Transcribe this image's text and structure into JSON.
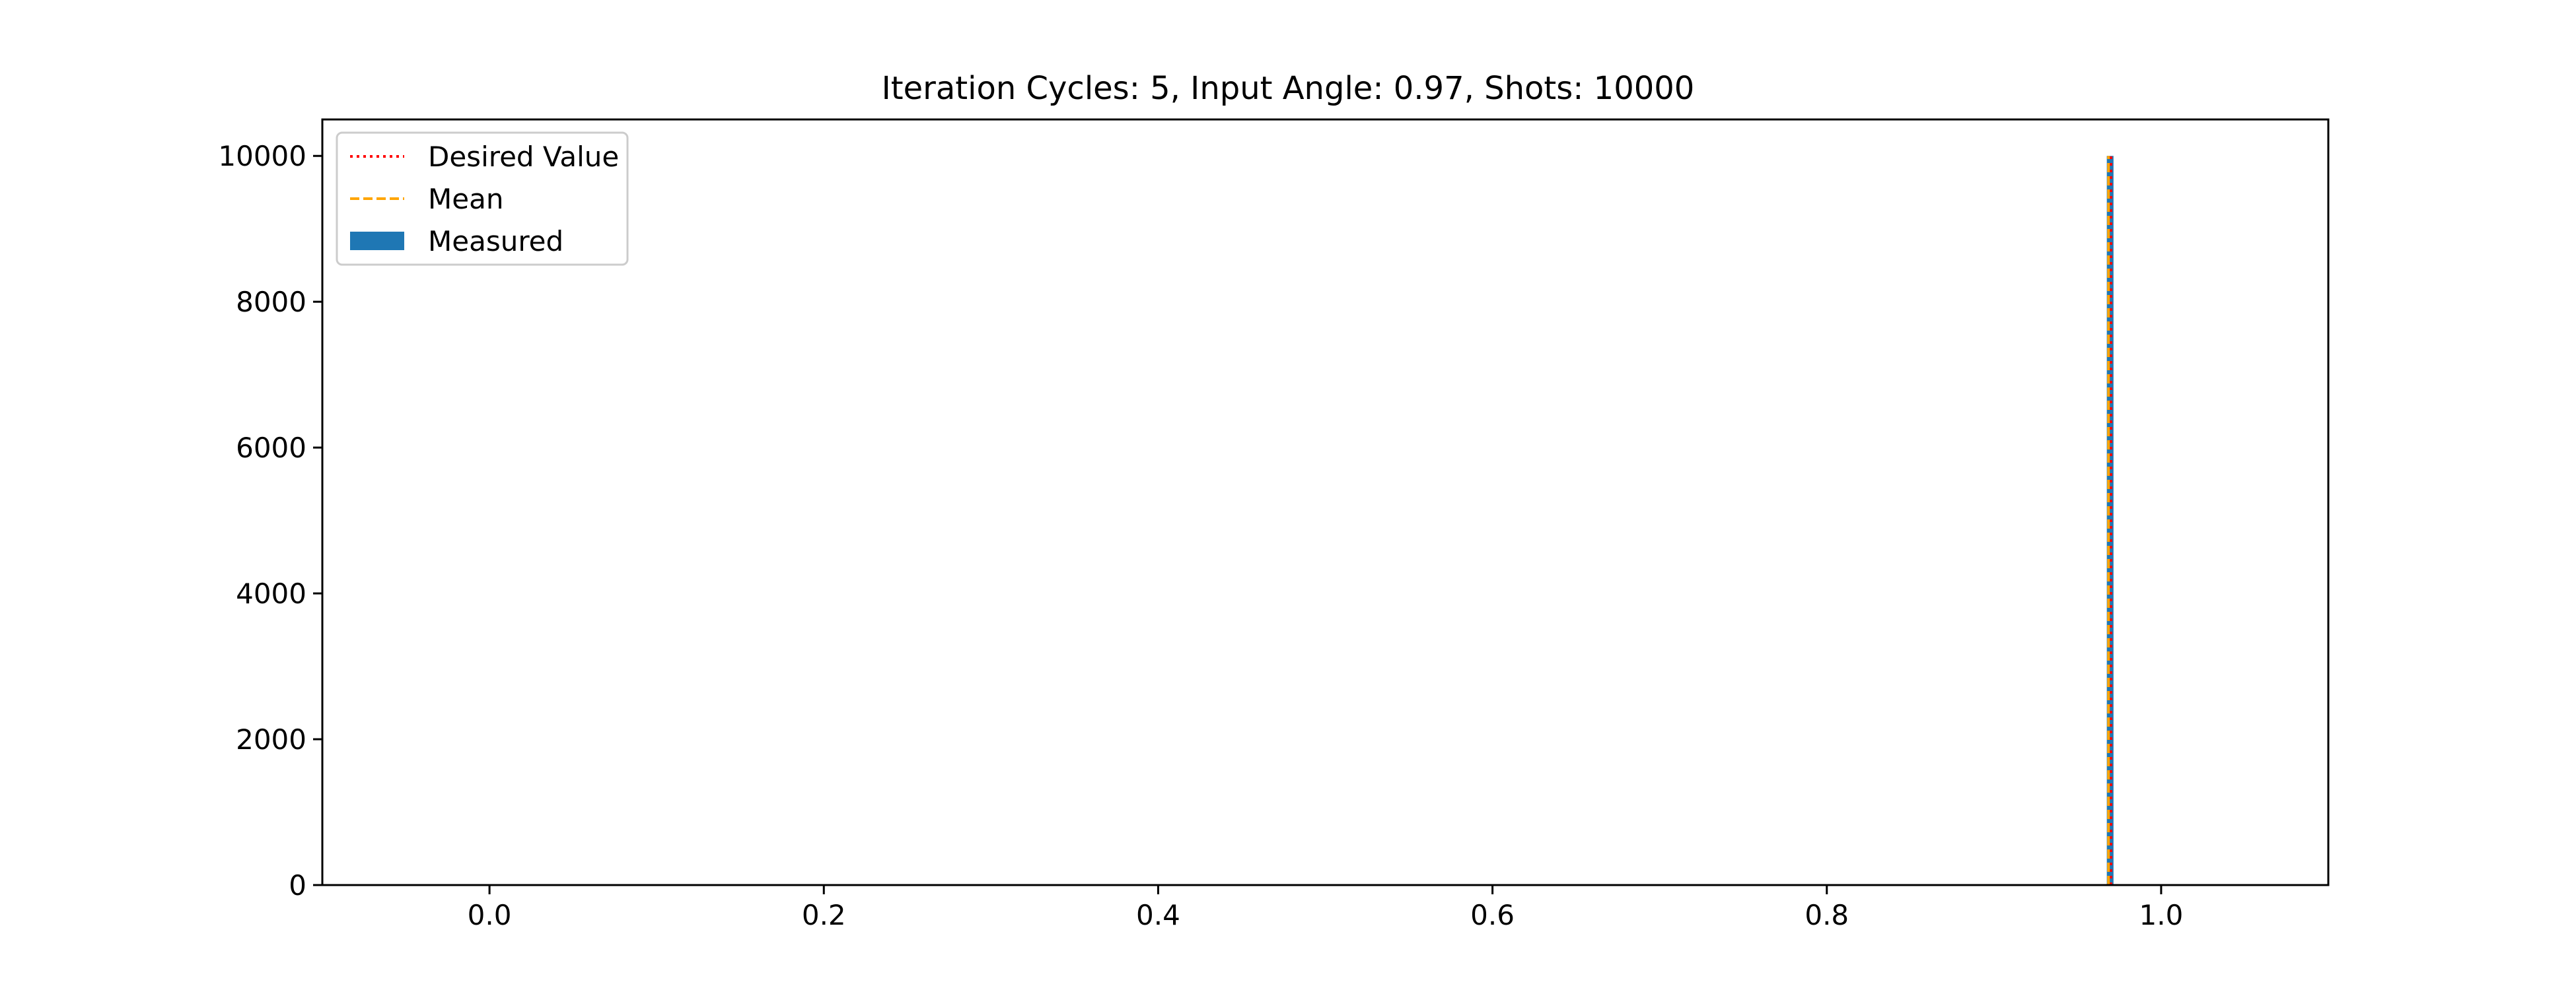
{
  "chart_data": {
    "type": "bar",
    "title": "Iteration Cycles: 5, Input Angle: 0.97, Shots: 10000",
    "xlabel": "",
    "ylabel": "",
    "xlim": [
      -0.1,
      1.1
    ],
    "ylim": [
      0,
      10500
    ],
    "x_ticks": [
      0.0,
      0.2,
      0.4,
      0.6,
      0.8,
      1.0
    ],
    "x_tick_labels": [
      "0.0",
      "0.2",
      "0.4",
      "0.6",
      "0.8",
      "1.0"
    ],
    "y_ticks": [
      0,
      2000,
      4000,
      6000,
      8000,
      10000
    ],
    "y_tick_labels": [
      "0",
      "2000",
      "4000",
      "6000",
      "8000",
      "10000"
    ],
    "grid": false,
    "legend_position": "top-left",
    "series": [
      {
        "name": "Measured",
        "kind": "histogram",
        "color": "#1f77b4",
        "bins": [
          {
            "x0": 0.9675,
            "x1": 0.9715,
            "count": 10000
          }
        ]
      },
      {
        "name": "Desired Value",
        "kind": "vline",
        "color": "#ff0000",
        "linestyle": "dotted",
        "x": 0.97,
        "ymax": 10000
      },
      {
        "name": "Mean",
        "kind": "vline",
        "color": "#ffa500",
        "linestyle": "dashed",
        "x": 0.9685,
        "ymax": 10000
      }
    ],
    "legend": [
      "Desired Value",
      "Mean",
      "Measured"
    ]
  }
}
